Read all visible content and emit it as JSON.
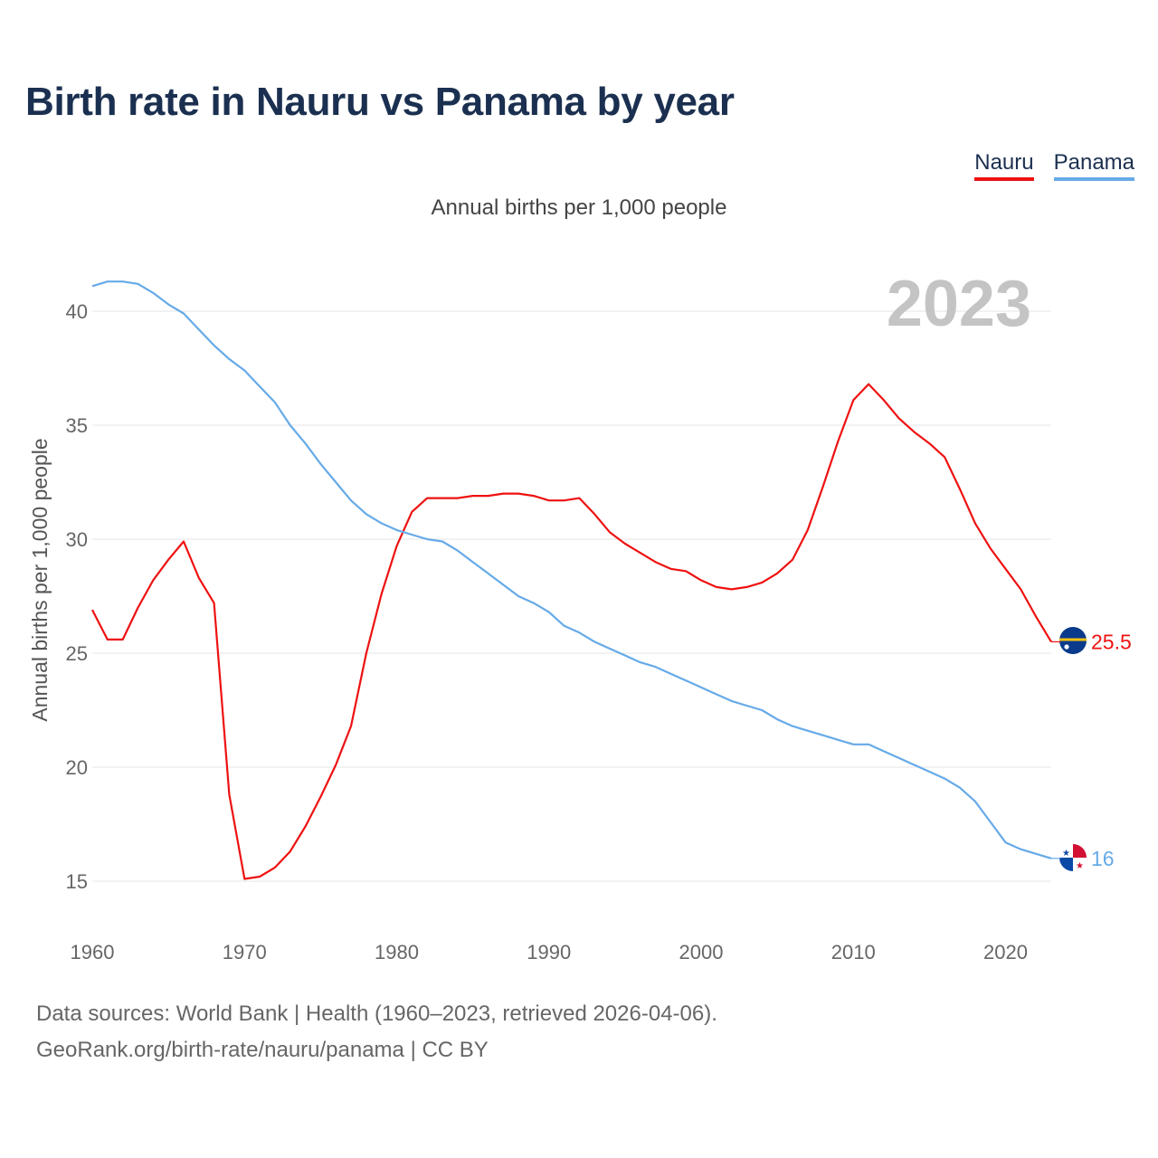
{
  "title": "Birth rate in Nauru vs Panama by year",
  "subtitle": "Annual births per 1,000 people",
  "footer": {
    "line1": "Data sources: World Bank | Health (1960–2023, retrieved 2026-04-06).",
    "line2": "GeoRank.org/birth-rate/nauru/panama | CC BY"
  },
  "chart_data": {
    "type": "line",
    "ylabel": "Annual births per 1,000 people",
    "xlabel": "",
    "year_label": "2023",
    "xlim": [
      1960,
      2023
    ],
    "ylim": [
      13,
      42
    ],
    "x_ticks": [
      1960,
      1970,
      1980,
      1990,
      2000,
      2010,
      2020
    ],
    "y_ticks": [
      15,
      20,
      25,
      30,
      35,
      40
    ],
    "grid": true,
    "legend_position": "top-right",
    "x": [
      1960,
      1961,
      1962,
      1963,
      1964,
      1965,
      1966,
      1967,
      1968,
      1969,
      1970,
      1971,
      1972,
      1973,
      1974,
      1975,
      1976,
      1977,
      1978,
      1979,
      1980,
      1981,
      1982,
      1983,
      1984,
      1985,
      1986,
      1987,
      1988,
      1989,
      1990,
      1991,
      1992,
      1993,
      1994,
      1995,
      1996,
      1997,
      1998,
      1999,
      2000,
      2001,
      2002,
      2003,
      2004,
      2005,
      2006,
      2007,
      2008,
      2009,
      2010,
      2011,
      2012,
      2013,
      2014,
      2015,
      2016,
      2017,
      2018,
      2019,
      2020,
      2021,
      2022,
      2023
    ],
    "series": [
      {
        "name": "Nauru",
        "color": "#ee1111",
        "end_label": "25.5",
        "values": [
          26.9,
          25.6,
          25.6,
          27.0,
          28.2,
          29.1,
          29.9,
          28.3,
          27.2,
          18.8,
          15.1,
          15.2,
          15.6,
          16.3,
          17.4,
          18.7,
          20.1,
          21.8,
          25.0,
          27.6,
          29.7,
          31.2,
          31.8,
          31.8,
          31.8,
          31.9,
          31.9,
          32.0,
          32.0,
          31.9,
          31.7,
          31.7,
          31.8,
          31.1,
          30.3,
          29.8,
          29.4,
          29.0,
          28.7,
          28.6,
          28.2,
          27.9,
          27.8,
          27.9,
          28.1,
          28.5,
          29.1,
          30.4,
          32.3,
          34.3,
          36.1,
          36.8,
          36.1,
          35.3,
          34.7,
          34.2,
          33.6,
          32.2,
          30.7,
          29.6,
          28.7,
          27.8,
          26.6,
          25.5
        ]
      },
      {
        "name": "Panama",
        "color": "#66aae8",
        "end_label": "16",
        "values": [
          41.1,
          41.3,
          41.3,
          41.2,
          40.8,
          40.3,
          39.9,
          39.2,
          38.5,
          37.9,
          37.4,
          36.7,
          36.0,
          35.0,
          34.2,
          33.3,
          32.5,
          31.7,
          31.1,
          30.7,
          30.4,
          30.2,
          30.0,
          29.9,
          29.5,
          29.0,
          28.5,
          28.0,
          27.5,
          27.2,
          26.8,
          26.2,
          25.9,
          25.5,
          25.2,
          24.9,
          24.6,
          24.4,
          24.1,
          23.8,
          23.5,
          23.2,
          22.9,
          22.7,
          22.5,
          22.1,
          21.8,
          21.6,
          21.4,
          21.2,
          21.0,
          21.0,
          20.7,
          20.4,
          20.1,
          19.8,
          19.5,
          19.1,
          18.5,
          17.6,
          16.7,
          16.4,
          16.2,
          16.0
        ]
      }
    ]
  }
}
